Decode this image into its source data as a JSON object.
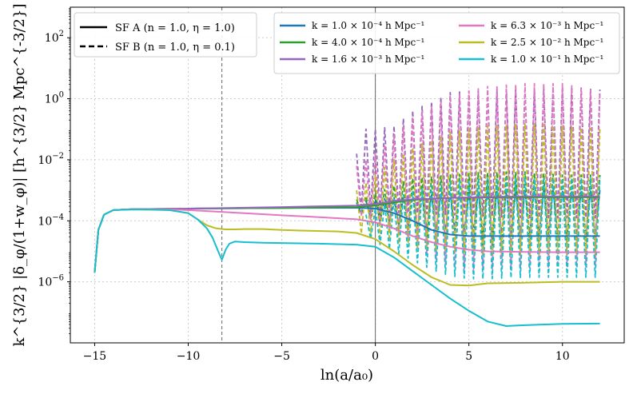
{
  "chart_data": {
    "type": "line",
    "title": "",
    "xlabel": "ln(a/a₀)",
    "ylabel": "k^{3/2} |δ_φ/(1+w_φ)| [h^{3/2} Mpc^{-3/2}]",
    "xlim": [
      -16.3,
      13.3
    ],
    "ylim_log10": [
      -8.0,
      3.0
    ],
    "yscale": "log",
    "grid": true,
    "x_ticks": [
      -15,
      -10,
      -5,
      0,
      5,
      10
    ],
    "x_tick_labels": [
      "−15",
      "−10",
      "−5",
      "0",
      "5",
      "10"
    ],
    "y_ticks_log10": [
      -6,
      -4,
      -2,
      0,
      2
    ],
    "y_tick_labels": [
      "10",
      "10",
      "10",
      "10",
      "10"
    ],
    "y_tick_exponents": [
      "−6",
      "−4",
      "−2",
      "0",
      "2"
    ],
    "vlines": [
      {
        "x": -8.2,
        "style": "dashed",
        "color": "#666666"
      },
      {
        "x": 0.0,
        "style": "solid",
        "color": "#666666"
      }
    ],
    "style_legend": [
      {
        "label": "SF A (n = 1.0, η = 1.0)",
        "linestyle": "solid"
      },
      {
        "label": "SF B (n = 1.0, η = 0.1)",
        "linestyle": "dashed"
      }
    ],
    "k_legend": [
      {
        "label": "k = 1.0 × 10⁻⁴ h Mpc⁻¹",
        "color": "#1f77b4"
      },
      {
        "label": "k = 4.0 × 10⁻⁴ h Mpc⁻¹",
        "color": "#2ca02c"
      },
      {
        "label": "k = 1.6 × 10⁻³ h Mpc⁻¹",
        "color": "#9467bd"
      },
      {
        "label": "k = 6.3 × 10⁻³ h Mpc⁻¹",
        "color": "#e377c2"
      },
      {
        "label": "k = 2.5 × 10⁻² h Mpc⁻¹",
        "color": "#bcbd22"
      },
      {
        "label": "k = 1.0 × 10⁻¹ h Mpc⁻¹",
        "color": "#17becf"
      }
    ],
    "series": [
      {
        "name": "SF A, k=1.0e-4",
        "color": "#1f77b4",
        "linestyle": "solid",
        "x": [
          -15,
          -14.8,
          -14.5,
          -14,
          -13,
          -10,
          -5,
          -1,
          0,
          1,
          2,
          3,
          4,
          5,
          7,
          9,
          12
        ],
        "log10y": [
          -5.7,
          -4.3,
          -3.8,
          -3.65,
          -3.62,
          -3.6,
          -3.58,
          -3.57,
          -3.6,
          -3.75,
          -4.0,
          -4.3,
          -4.45,
          -4.5,
          -4.5,
          -4.5,
          -4.5
        ]
      },
      {
        "name": "SF A, k=4.0e-4",
        "color": "#2ca02c",
        "linestyle": "solid",
        "x": [
          -15,
          -14.8,
          -14.5,
          -14,
          -13,
          -10,
          -5,
          -1,
          0,
          1,
          2,
          3,
          4,
          5,
          7,
          9,
          12
        ],
        "log10y": [
          -5.7,
          -4.3,
          -3.8,
          -3.65,
          -3.62,
          -3.6,
          -3.58,
          -3.55,
          -3.5,
          -3.4,
          -3.32,
          -3.28,
          -3.25,
          -3.24,
          -3.23,
          -3.23,
          -3.23
        ]
      },
      {
        "name": "SF A, k=1.6e-3",
        "color": "#9467bd",
        "linestyle": "solid",
        "x": [
          -15,
          -14.8,
          -14.5,
          -14,
          -13,
          -10,
          -5,
          -1,
          0,
          1,
          2,
          4,
          6,
          8,
          10,
          12
        ],
        "log10y": [
          -5.7,
          -4.3,
          -3.8,
          -3.65,
          -3.62,
          -3.6,
          -3.55,
          -3.5,
          -3.45,
          -3.35,
          -3.3,
          -3.25,
          -3.22,
          -3.2,
          -3.2,
          -3.2
        ]
      },
      {
        "name": "SF A, k=6.3e-3",
        "color": "#e377c2",
        "linestyle": "solid",
        "x": [
          -15,
          -14.8,
          -14.5,
          -14,
          -13,
          -11,
          -9,
          -7,
          -5,
          -3,
          -1,
          0,
          1,
          2,
          3,
          4,
          5,
          6,
          8,
          10,
          12
        ],
        "log10y": [
          -5.7,
          -4.3,
          -3.8,
          -3.65,
          -3.62,
          -3.62,
          -3.68,
          -3.75,
          -3.82,
          -3.88,
          -3.95,
          -4.05,
          -4.25,
          -4.5,
          -4.7,
          -4.85,
          -4.95,
          -5.0,
          -5.02,
          -5.03,
          -5.03
        ]
      },
      {
        "name": "SF A, k=2.5e-2",
        "color": "#bcbd22",
        "linestyle": "solid",
        "x": [
          -15,
          -14.8,
          -14.5,
          -14,
          -13,
          -11,
          -10,
          -9.5,
          -9,
          -8.5,
          -8,
          -7.5,
          -7,
          -6,
          -5,
          -4,
          -2,
          -1,
          0,
          1,
          2,
          3,
          4,
          5,
          6,
          8,
          10,
          12
        ],
        "log10y": [
          -5.7,
          -4.3,
          -3.8,
          -3.65,
          -3.63,
          -3.65,
          -3.75,
          -3.95,
          -4.15,
          -4.25,
          -4.28,
          -4.28,
          -4.27,
          -4.27,
          -4.3,
          -4.32,
          -4.35,
          -4.4,
          -4.6,
          -5.0,
          -5.45,
          -5.85,
          -6.1,
          -6.12,
          -6.05,
          -6.03,
          -6.0,
          -6.0
        ]
      },
      {
        "name": "SF A, k=1.0e-1",
        "color": "#17becf",
        "linestyle": "solid",
        "x": [
          -15,
          -14.8,
          -14.5,
          -14,
          -13,
          -12,
          -11,
          -10,
          -9.5,
          -9,
          -8.7,
          -8.4,
          -8.2,
          -8.0,
          -7.8,
          -7.5,
          -7,
          -6,
          -5,
          -3,
          -1,
          0,
          1,
          2,
          3,
          4,
          5,
          6,
          7,
          8,
          10,
          12
        ],
        "log10y": [
          -5.7,
          -4.3,
          -3.8,
          -3.65,
          -3.63,
          -3.63,
          -3.65,
          -3.75,
          -3.95,
          -4.25,
          -4.55,
          -5.0,
          -5.28,
          -4.95,
          -4.75,
          -4.68,
          -4.7,
          -4.72,
          -4.73,
          -4.75,
          -4.78,
          -4.85,
          -5.2,
          -5.65,
          -6.1,
          -6.55,
          -6.95,
          -7.3,
          -7.45,
          -7.42,
          -7.38,
          -7.37
        ]
      },
      {
        "name": "SF B, k=1.0e-4",
        "color": "#1f77b4",
        "linestyle": "dashed",
        "oscillating": true,
        "x_start": -1.0,
        "x_end": 12.0,
        "period": 0.5,
        "top_x": [
          -1,
          0,
          2,
          4,
          6,
          8,
          10,
          12
        ],
        "top_log10y": [
          -3.4,
          -3.3,
          -3.2,
          -3.1,
          -3.05,
          -3.0,
          -3.0,
          -3.0
        ],
        "bottom_x": [
          -1,
          0,
          2,
          4,
          6,
          8,
          10,
          12
        ],
        "bottom_log10y": [
          -3.7,
          -4.0,
          -4.2,
          -4.3,
          -4.4,
          -4.4,
          -4.45,
          -4.45
        ]
      },
      {
        "name": "SF B, k=4.0e-4",
        "color": "#2ca02c",
        "linestyle": "dashed",
        "oscillating": true,
        "x_start": -1.0,
        "x_end": 12.0,
        "period": 0.5,
        "top_x": [
          -1,
          0,
          2,
          4,
          6,
          8,
          10,
          12
        ],
        "top_log10y": [
          -3.3,
          -3.1,
          -2.6,
          -2.5,
          -2.4,
          -2.4,
          -2.5,
          -2.5
        ],
        "bottom_x": [
          -1,
          0,
          1,
          2,
          3,
          4,
          6,
          8,
          10,
          12
        ],
        "bottom_log10y": [
          -3.7,
          -3.8,
          -4.2,
          -4.5,
          -4.8,
          -4.9,
          -4.9,
          -4.85,
          -4.8,
          -4.8
        ]
      },
      {
        "name": "SF B, k=1.6e-3",
        "color": "#9467bd",
        "linestyle": "dashed",
        "oscillating": true,
        "x_start": -1.0,
        "x_end": 12.0,
        "period": 0.5,
        "top_x": [
          -1,
          -0.5,
          0,
          1,
          2,
          4,
          6,
          8,
          10,
          12
        ],
        "top_log10y": [
          -1.8,
          -1.0,
          -1.0,
          -0.9,
          -0.4,
          0.2,
          0.3,
          0.3,
          0.4,
          0.3
        ],
        "bottom_x": [
          -1,
          0,
          2,
          4,
          6,
          8,
          10,
          12
        ],
        "bottom_log10y": [
          -3.6,
          -3.7,
          -3.75,
          -3.8,
          -3.85,
          -3.9,
          -3.9,
          -3.9
        ]
      },
      {
        "name": "SF B, k=6.3e-3",
        "color": "#e377c2",
        "linestyle": "dashed",
        "oscillating": true,
        "x_start": -1.0,
        "x_end": 12.0,
        "period": 0.5,
        "top_x": [
          -1,
          0,
          1,
          2,
          4,
          6,
          8,
          10,
          12
        ],
        "top_log10y": [
          -2.2,
          -1.8,
          -1.2,
          -0.6,
          0.1,
          0.4,
          0.5,
          0.5,
          0.2
        ],
        "bottom_x": [
          -1,
          0,
          1,
          2,
          3,
          4,
          5,
          6,
          8,
          10,
          12
        ],
        "bottom_log10y": [
          -3.8,
          -4.0,
          -4.4,
          -4.8,
          -5.2,
          -5.5,
          -5.6,
          -5.6,
          -5.55,
          -5.5,
          -5.5
        ]
      },
      {
        "name": "SF B, k=2.5e-2",
        "color": "#bcbd22",
        "linestyle": "dashed",
        "oscillating": true,
        "x_start": -1.0,
        "x_end": 12.0,
        "period": 0.5,
        "top_x": [
          -1,
          0,
          1,
          2,
          4,
          6,
          8,
          10,
          12
        ],
        "top_log10y": [
          -3.0,
          -2.5,
          -2.0,
          -1.6,
          -1.1,
          -0.9,
          -0.8,
          -0.9,
          -1.0
        ],
        "bottom_x": [
          -1,
          0,
          1,
          2,
          4,
          6,
          8,
          10,
          12
        ],
        "bottom_log10y": [
          -4.4,
          -4.5,
          -4.7,
          -4.9,
          -5.0,
          -5.1,
          -5.1,
          -5.1,
          -5.1
        ]
      },
      {
        "name": "SF B, k=1.0e-1",
        "color": "#17becf",
        "linestyle": "dashed",
        "oscillating": true,
        "x_start": -0.5,
        "x_end": 12.0,
        "period": 0.5,
        "top_x": [
          -0.5,
          0,
          1,
          2,
          4,
          6,
          8,
          10,
          12
        ],
        "top_log10y": [
          -3.8,
          -3.6,
          -3.3,
          -3.0,
          -2.7,
          -2.6,
          -2.6,
          -2.6,
          -2.6
        ],
        "bottom_x": [
          -0.5,
          0,
          1,
          2,
          3,
          4,
          5,
          6,
          8,
          10,
          12
        ],
        "bottom_log10y": [
          -4.5,
          -4.7,
          -5.0,
          -5.3,
          -5.6,
          -5.8,
          -5.9,
          -5.9,
          -5.85,
          -5.85,
          -5.85
        ]
      }
    ]
  }
}
